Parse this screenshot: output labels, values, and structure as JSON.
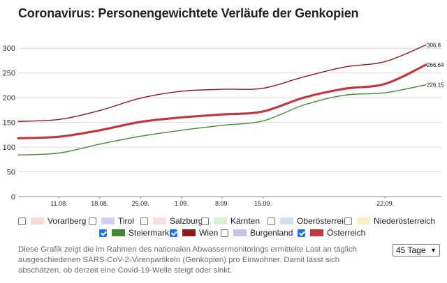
{
  "header": {
    "title": "Coronavirus: Personengewichtete Verläufe der Genkopien"
  },
  "chart_data": {
    "type": "line",
    "x": [
      "08.08.",
      "11.08.",
      "18.08.",
      "25.08.",
      "1.09.",
      "8.09.",
      "15.09.",
      "18.09.",
      "19.09.",
      "22.09.",
      "24.09."
    ],
    "x_ticks": [
      "11.08.",
      "18.08.",
      "25.08.",
      "1.09.",
      "8.09.",
      "15.09.",
      "22.09."
    ],
    "y_ticks": [
      "0",
      "50",
      "100",
      "150",
      "200",
      "250",
      "300"
    ],
    "ylim": [
      0,
      320
    ],
    "grid": true,
    "series": [
      {
        "name": "Wien",
        "color": "#8b1a1a",
        "values": [
          152,
          156,
          174,
          199,
          213,
          217,
          219,
          242,
          262,
          273,
          306.8
        ],
        "end_label": "306,8"
      },
      {
        "name": "Österreich",
        "color": "#c0373f",
        "values": [
          118,
          121,
          134,
          151,
          160,
          166,
          172,
          200,
          218,
          228,
          266.64
        ],
        "end_label": "266,64"
      },
      {
        "name": "Steiermark",
        "color": "#3f8a2e",
        "values": [
          84,
          88,
          106,
          122,
          134,
          144,
          153,
          185,
          205,
          210,
          226.15
        ],
        "end_label": "226,15"
      }
    ]
  },
  "legend": {
    "items": [
      {
        "label": "Vorarlberg",
        "color": "#f9d8d5",
        "checked": false
      },
      {
        "label": "Tirol",
        "color": "#cfd2f5",
        "checked": false
      },
      {
        "label": "Salzburg",
        "color": "#f6dede",
        "checked": false
      },
      {
        "label": "Kärnten",
        "color": "#d6f0d0",
        "checked": false
      },
      {
        "label": "Oberösterreich",
        "color": "#cde3ec",
        "checked": false
      },
      {
        "label": "Niederösterreich",
        "color": "#f9f1c9",
        "checked": false
      },
      {
        "label": "Steiermark",
        "color": "#3f8a2e",
        "checked": true
      },
      {
        "label": "Wien",
        "color": "#8b1a1a",
        "checked": true
      },
      {
        "label": "Burgenland",
        "color": "#c7c3ee",
        "checked": false
      },
      {
        "label": "Österreich",
        "color": "#c0373f",
        "checked": true
      }
    ]
  },
  "description": "Diese Grafik zeigt die im Rahmen des nationalen Abwassermonitorings ermittelte Last an täglich ausgeschiedenen SARS-CoV-2-Virenpartikeln (Genkopien) pro Einwohner. Damit lässt sich abschätzen, ob derzeit eine Covid-19-Welle steigt oder sinkt.",
  "range_select": {
    "value": "45 Tage",
    "icon": "chevron-down-icon"
  }
}
